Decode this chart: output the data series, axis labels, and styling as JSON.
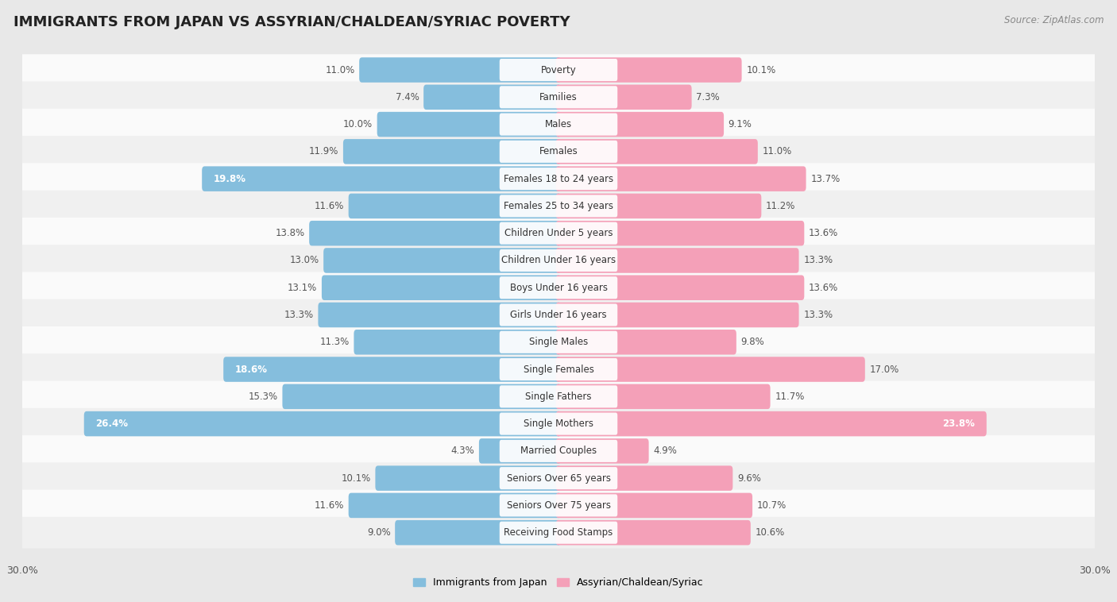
{
  "title": "IMMIGRANTS FROM JAPAN VS ASSYRIAN/CHALDEAN/SYRIAC POVERTY",
  "source": "Source: ZipAtlas.com",
  "categories": [
    "Poverty",
    "Families",
    "Males",
    "Females",
    "Females 18 to 24 years",
    "Females 25 to 34 years",
    "Children Under 5 years",
    "Children Under 16 years",
    "Boys Under 16 years",
    "Girls Under 16 years",
    "Single Males",
    "Single Females",
    "Single Fathers",
    "Single Mothers",
    "Married Couples",
    "Seniors Over 65 years",
    "Seniors Over 75 years",
    "Receiving Food Stamps"
  ],
  "japan_values": [
    11.0,
    7.4,
    10.0,
    11.9,
    19.8,
    11.6,
    13.8,
    13.0,
    13.1,
    13.3,
    11.3,
    18.6,
    15.3,
    26.4,
    4.3,
    10.1,
    11.6,
    9.0
  ],
  "assyrian_values": [
    10.1,
    7.3,
    9.1,
    11.0,
    13.7,
    11.2,
    13.6,
    13.3,
    13.6,
    13.3,
    9.8,
    17.0,
    11.7,
    23.8,
    4.9,
    9.6,
    10.7,
    10.6
  ],
  "japan_color": "#85bedd",
  "assyrian_color": "#f4a0b8",
  "label_japan": "Immigrants from Japan",
  "label_assyrian": "Assyrian/Chaldean/Syriac",
  "axis_max": 30.0,
  "bg_color": "#e8e8e8",
  "row_color_odd": "#f0f0f0",
  "row_color_even": "#fafafa",
  "title_fontsize": 13,
  "value_fontsize": 8.5,
  "category_fontsize": 8.5,
  "legend_fontsize": 9
}
